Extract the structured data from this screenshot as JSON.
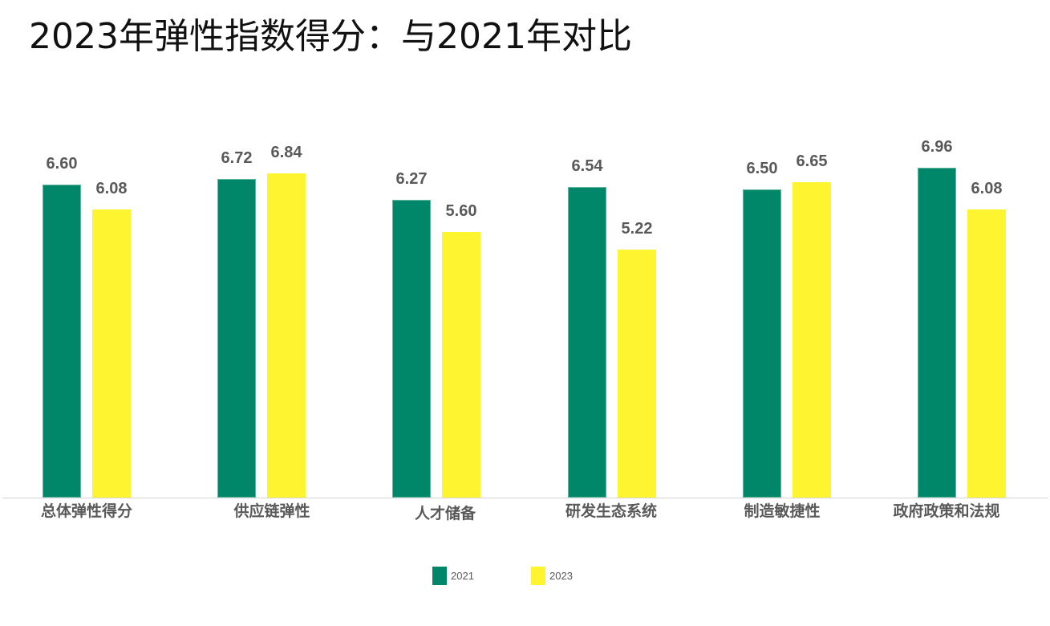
{
  "title": "2023年弹性指数得分：与2021年对比",
  "colors": {
    "2021": "#00876a",
    "2023": "#fff430"
  },
  "legend": [
    {
      "label": "2021",
      "color": "#00876a"
    },
    {
      "label": "2023",
      "color": "#fff430"
    }
  ],
  "chart_data": {
    "type": "bar",
    "title": "2023年弹性指数得分：与2021年对比",
    "categories": [
      "总体弹性得分",
      "供应链弹性",
      "人才储备",
      "研发生态系统",
      "制造敏捷性",
      "政府政策和法规"
    ],
    "series": [
      {
        "name": "2021",
        "color": "#00876a",
        "values": [
          6.6,
          6.72,
          6.27,
          6.54,
          6.5,
          6.96
        ]
      },
      {
        "name": "2023",
        "color": "#fff430",
        "values": [
          6.08,
          6.84,
          5.6,
          5.22,
          6.65,
          6.08
        ]
      }
    ],
    "value_labels": {
      "2021": [
        "6.60",
        "6.72",
        "6.27",
        "6.54",
        "6.50",
        "6.96"
      ],
      "2023": [
        "6.08",
        "6.84",
        "5.60",
        "5.22",
        "6.65",
        "6.08"
      ]
    },
    "xlabel": "",
    "ylabel": "",
    "ylim": [
      0,
      7.5
    ],
    "grid": false,
    "y_axis_visible": false,
    "data_labels": true,
    "legend_position": "bottom"
  }
}
